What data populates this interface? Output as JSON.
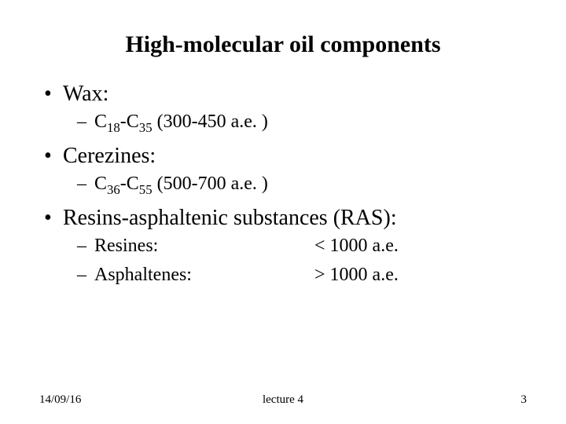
{
  "title": "High-molecular oil components",
  "items": [
    {
      "label": "Wax:",
      "sub": {
        "prefix": "C",
        "s1": "18",
        "mid": "-C",
        "s2": "35",
        "rest": "  (300-450 а.е. )"
      }
    },
    {
      "label": "Cerezines:",
      "sub": {
        "prefix": "C",
        "s1": "36",
        "mid": "-C",
        "s2": "55",
        "rest": "  (500-700 а.е. )"
      }
    },
    {
      "label": "Resins-asphaltenic substances (RAS):",
      "rows": [
        {
          "name": "Resines:",
          "val": "< 1000 а.е."
        },
        {
          "name": "Asphaltenes:",
          "val": "> 1000 а.е."
        }
      ]
    }
  ],
  "footer": {
    "date": "14/09/16",
    "center": "lecture 4",
    "page": "3"
  },
  "style": {
    "background": "#ffffff",
    "text_color": "#000000",
    "title_fontsize": 30,
    "l1_fontsize": 28,
    "l2_fontsize": 24,
    "footer_fontsize": 15,
    "font_family": "Times New Roman"
  }
}
